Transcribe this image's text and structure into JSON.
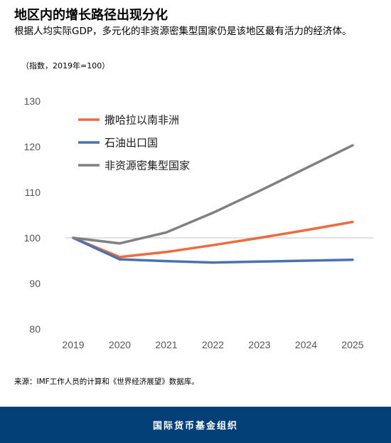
{
  "title": "地区内的增长路径出现分化",
  "subtitle": "根据人均实际GDP，多元化的非资源密集型国家仍是该地区最有活力的经济体。",
  "note": "（指数，2019年=100）",
  "source": "来源：IMF工作人员的计算和《世界经济展望》数据库。",
  "footer": {
    "label": "国际货币基金组织",
    "background": "#034078"
  },
  "chart_data": {
    "type": "line",
    "x": [
      "2019",
      "2020",
      "2021",
      "2022",
      "2023",
      "2024",
      "2025"
    ],
    "ylim": [
      80,
      130
    ],
    "yticks": [
      80,
      90,
      100,
      110,
      120,
      130
    ],
    "reference_line": 100,
    "grid": false,
    "legend_position": "top-left",
    "series": [
      {
        "name": "撒哈拉以南非洲",
        "color": "#ED6B3E",
        "values": [
          100,
          95.8,
          96.9,
          98.4,
          100.0,
          101.7,
          103.5
        ]
      },
      {
        "name": "石油出口国",
        "color": "#4A72B3",
        "values": [
          100,
          95.3,
          94.9,
          94.6,
          94.8,
          95.0,
          95.2
        ]
      },
      {
        "name": "非资源密集型国家",
        "color": "#808080",
        "values": [
          100,
          98.8,
          101.2,
          105.5,
          110.3,
          115.3,
          120.3
        ]
      }
    ]
  }
}
